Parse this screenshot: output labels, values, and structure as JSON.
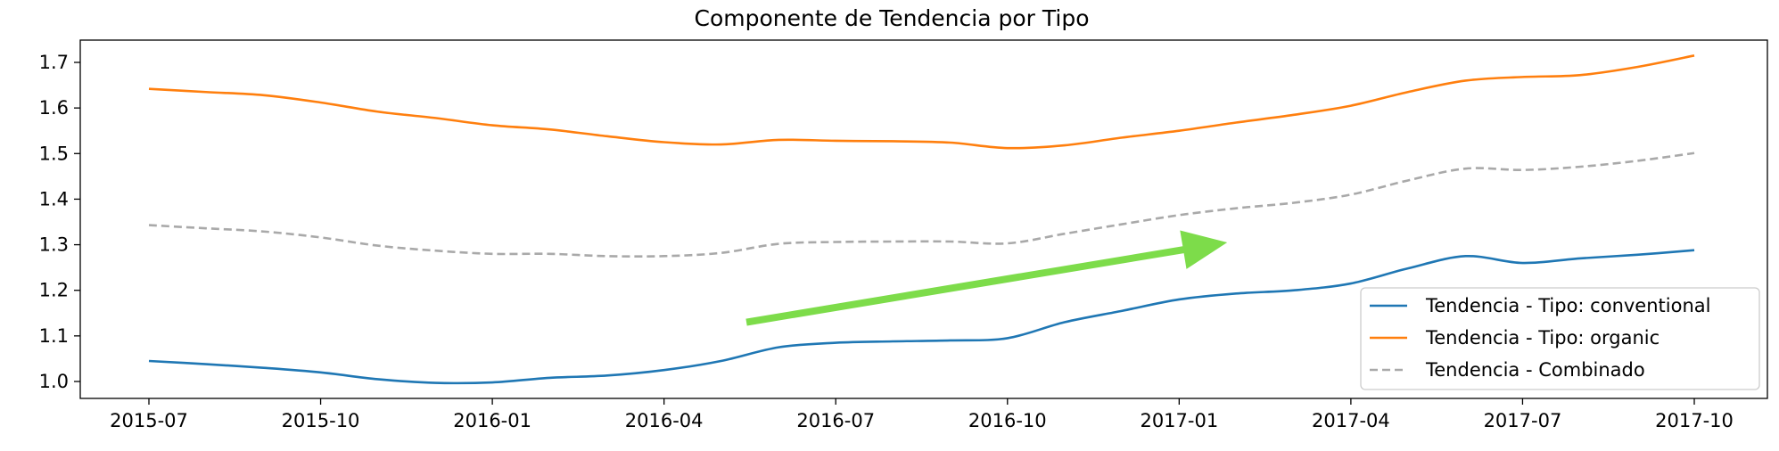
{
  "chart_data": {
    "type": "line",
    "title": "Componente de Tendencia por Tipo",
    "xlabel": "",
    "ylabel": "",
    "xlim": [
      2015.5,
      2017.83
    ],
    "ylim": [
      0.96,
      1.75
    ],
    "x_ticks": [
      {
        "label": "2015-07",
        "x": 2015.5
      },
      {
        "label": "2015-10",
        "x": 2015.75
      },
      {
        "label": "2016-01",
        "x": 2016.0
      },
      {
        "label": "2016-04",
        "x": 2016.25
      },
      {
        "label": "2016-07",
        "x": 2016.5
      },
      {
        "label": "2016-10",
        "x": 2016.75
      },
      {
        "label": "2017-01",
        "x": 2017.0
      },
      {
        "label": "2017-04",
        "x": 2017.25
      },
      {
        "label": "2017-07",
        "x": 2017.5
      },
      {
        "label": "2017-10",
        "x": 2017.75
      }
    ],
    "y_ticks": [
      "1.0",
      "1.1",
      "1.2",
      "1.3",
      "1.4",
      "1.5",
      "1.6",
      "1.7"
    ],
    "grid": false,
    "legend_position": "lower-right",
    "series": [
      {
        "name": "Tendencia - Tipo: conventional",
        "color": "#1f77b4",
        "style": "solid",
        "x": [
          2015.5,
          2015.583,
          2015.667,
          2015.75,
          2015.833,
          2015.917,
          2016.0,
          2016.083,
          2016.167,
          2016.25,
          2016.333,
          2016.417,
          2016.5,
          2016.583,
          2016.667,
          2016.75,
          2016.833,
          2016.917,
          2017.0,
          2017.083,
          2017.167,
          2017.25,
          2017.333,
          2017.417,
          2017.5,
          2017.583,
          2017.667,
          2017.75
        ],
        "values": [
          1.045,
          1.038,
          1.03,
          1.02,
          1.005,
          0.997,
          0.998,
          1.008,
          1.013,
          1.025,
          1.045,
          1.075,
          1.085,
          1.088,
          1.09,
          1.095,
          1.13,
          1.155,
          1.18,
          1.193,
          1.2,
          1.215,
          1.248,
          1.275,
          1.26,
          1.27,
          1.278,
          1.288
        ]
      },
      {
        "name": "Tendencia - Tipo: organic",
        "color": "#ff7f0e",
        "style": "solid",
        "x": [
          2015.5,
          2015.583,
          2015.667,
          2015.75,
          2015.833,
          2015.917,
          2016.0,
          2016.083,
          2016.167,
          2016.25,
          2016.333,
          2016.417,
          2016.5,
          2016.583,
          2016.667,
          2016.75,
          2016.833,
          2016.917,
          2017.0,
          2017.083,
          2017.167,
          2017.25,
          2017.333,
          2017.417,
          2017.5,
          2017.583,
          2017.667,
          2017.75
        ],
        "values": [
          1.642,
          1.635,
          1.628,
          1.612,
          1.592,
          1.578,
          1.562,
          1.553,
          1.538,
          1.525,
          1.52,
          1.53,
          1.528,
          1.527,
          1.524,
          1.512,
          1.518,
          1.535,
          1.55,
          1.568,
          1.585,
          1.605,
          1.635,
          1.66,
          1.668,
          1.672,
          1.69,
          1.715
        ]
      },
      {
        "name": "Tendencia - Combinado",
        "color": "#a9a9a9",
        "style": "dashed",
        "x": [
          2015.5,
          2015.583,
          2015.667,
          2015.75,
          2015.833,
          2015.917,
          2016.0,
          2016.083,
          2016.167,
          2016.25,
          2016.333,
          2016.417,
          2016.5,
          2016.583,
          2016.667,
          2016.75,
          2016.833,
          2016.917,
          2017.0,
          2017.083,
          2017.167,
          2017.25,
          2017.333,
          2017.417,
          2017.5,
          2017.583,
          2017.667,
          2017.75
        ],
        "values": [
          1.343,
          1.336,
          1.329,
          1.316,
          1.298,
          1.287,
          1.28,
          1.28,
          1.275,
          1.275,
          1.282,
          1.302,
          1.306,
          1.307,
          1.307,
          1.303,
          1.324,
          1.345,
          1.365,
          1.38,
          1.392,
          1.41,
          1.441,
          1.467,
          1.464,
          1.471,
          1.484,
          1.501
        ]
      }
    ],
    "annotations": [
      {
        "type": "arrow",
        "color": "#7ddc4a",
        "from": [
          2016.37,
          1.13
        ],
        "to": [
          2017.07,
          1.305
        ]
      }
    ]
  }
}
